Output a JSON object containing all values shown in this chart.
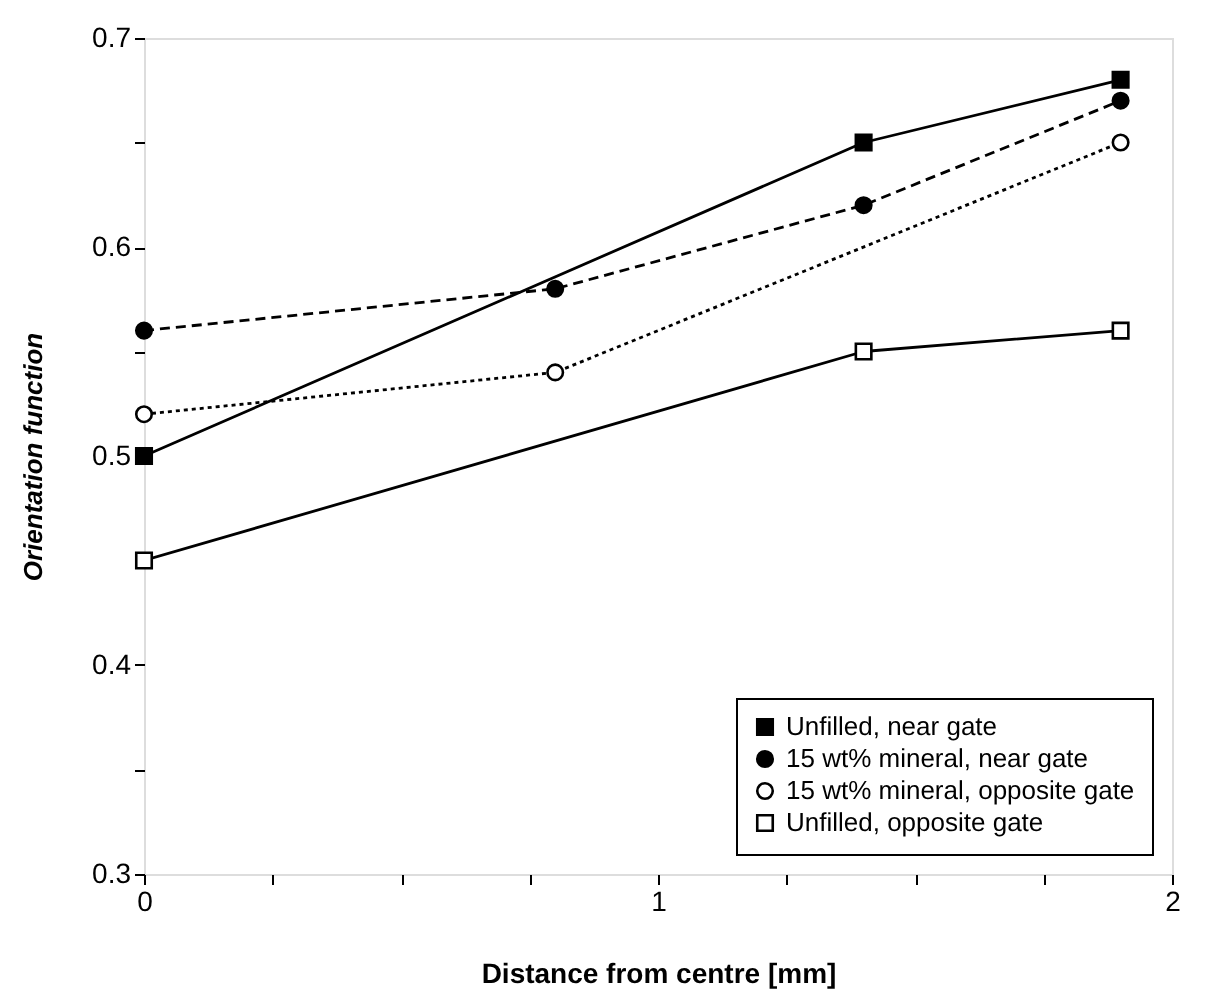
{
  "chart_data": {
    "type": "line",
    "xlabel": "Distance from centre [mm]",
    "ylabel": "Orientation function",
    "xlim": [
      0,
      2
    ],
    "ylim": [
      0.3,
      0.7
    ],
    "xticks": [
      0,
      {
        "value": 0.25,
        "label": null
      },
      {
        "value": 0.5,
        "label": null
      },
      {
        "value": 0.75,
        "label": null
      },
      1,
      {
        "value": 1.25,
        "label": null
      },
      {
        "value": 1.5,
        "label": null
      },
      {
        "value": 1.75,
        "label": null
      },
      2
    ],
    "yticks": [
      0.3,
      {
        "value": 0.35,
        "label": null
      },
      0.4,
      {
        "value": 0.45,
        "label": null
      },
      0.5,
      {
        "value": 0.55,
        "label": null
      },
      0.6,
      {
        "value": 0.65,
        "label": null
      },
      0.7
    ],
    "grid": false,
    "legend": "bottom right",
    "series": [
      {
        "name": "Unfilled, near gate",
        "color": "#000000",
        "x": [
          0,
          1.4,
          1.9
        ],
        "values": [
          0.5,
          0.65,
          0.68
        ],
        "marker": "square",
        "line_style": "solid"
      },
      {
        "name": "15 wt% mineral, near gate",
        "color": "#000000",
        "x": [
          0,
          0.8,
          1.4,
          1.9
        ],
        "values": [
          0.56,
          0.58,
          0.62,
          0.67
        ],
        "marker": "circle",
        "line_style": "dashed"
      },
      {
        "name": "15 wt% mineral, opposite gate",
        "color": "#000000",
        "x": [
          0,
          0.8,
          1.9
        ],
        "values": [
          0.52,
          0.54,
          0.65
        ],
        "marker": "circle_open",
        "line_style": "dotted"
      },
      {
        "name": "Unfilled, opposite gate",
        "color": "#000000",
        "x": [
          0,
          1.4,
          1.9
        ],
        "values": [
          0.45,
          0.55,
          0.56
        ],
        "marker": "square_open",
        "line_style": "solid"
      }
    ]
  }
}
